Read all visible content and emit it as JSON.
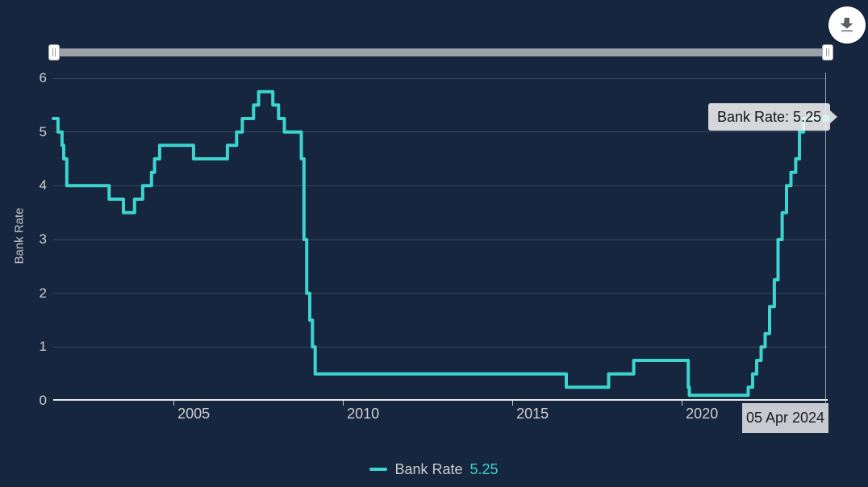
{
  "colors": {
    "background": "#16263E",
    "accent": "#3DD4CE",
    "grid": "#35455C",
    "axis_line": "#E8E8E8",
    "label": "#CCCCCC",
    "tooltip_bg": "#F7F7F7",
    "tooltip_text": "#141414"
  },
  "icons": {
    "download": "arrow-down-to-line"
  },
  "tooltip": {
    "label": "Bank Rate: 5.25",
    "date_label": "05 Apr 2024"
  },
  "legend": {
    "series_label": "Bank Rate",
    "series_value": "5.25"
  },
  "chart_data": {
    "type": "line",
    "step": "after",
    "title": "",
    "xlabel": "",
    "ylabel": "Bank Rate",
    "ylim": [
      0,
      6
    ],
    "yticks": [
      0,
      1,
      2,
      3,
      4,
      5,
      6
    ],
    "xlim": [
      2001.45,
      2024.28
    ],
    "xticks": [
      {
        "value": 2005,
        "label": "2005"
      },
      {
        "value": 2010,
        "label": "2010"
      },
      {
        "value": 2015,
        "label": "2015"
      },
      {
        "value": 2020,
        "label": "2020"
      }
    ],
    "grid": true,
    "legend_position": "bottom",
    "series": [
      {
        "name": "Bank Rate",
        "current_value": 5.25,
        "current_date": "05 Apr 2024",
        "points": [
          [
            2001.45,
            5.25
          ],
          [
            2001.59,
            5.0
          ],
          [
            2001.71,
            4.75
          ],
          [
            2001.76,
            4.5
          ],
          [
            2001.85,
            4.0
          ],
          [
            2003.1,
            3.75
          ],
          [
            2003.52,
            3.5
          ],
          [
            2003.85,
            3.75
          ],
          [
            2004.09,
            4.0
          ],
          [
            2004.35,
            4.25
          ],
          [
            2004.44,
            4.5
          ],
          [
            2004.59,
            4.75
          ],
          [
            2005.59,
            4.5
          ],
          [
            2006.59,
            4.75
          ],
          [
            2006.86,
            5.0
          ],
          [
            2007.03,
            5.25
          ],
          [
            2007.36,
            5.5
          ],
          [
            2007.51,
            5.75
          ],
          [
            2007.93,
            5.5
          ],
          [
            2008.1,
            5.25
          ],
          [
            2008.27,
            5.0
          ],
          [
            2008.77,
            4.5
          ],
          [
            2008.85,
            3.0
          ],
          [
            2008.93,
            2.0
          ],
          [
            2009.02,
            1.5
          ],
          [
            2009.1,
            1.0
          ],
          [
            2009.18,
            0.5
          ],
          [
            2016.59,
            0.25
          ],
          [
            2017.84,
            0.5
          ],
          [
            2018.58,
            0.75
          ],
          [
            2020.19,
            0.25
          ],
          [
            2020.22,
            0.1
          ],
          [
            2021.96,
            0.25
          ],
          [
            2022.09,
            0.5
          ],
          [
            2022.21,
            0.75
          ],
          [
            2022.34,
            1.0
          ],
          [
            2022.46,
            1.25
          ],
          [
            2022.59,
            1.75
          ],
          [
            2022.73,
            2.25
          ],
          [
            2022.84,
            3.0
          ],
          [
            2022.96,
            3.5
          ],
          [
            2023.09,
            4.0
          ],
          [
            2023.22,
            4.25
          ],
          [
            2023.36,
            4.5
          ],
          [
            2023.47,
            5.0
          ],
          [
            2023.59,
            5.25
          ],
          [
            2024.26,
            5.25
          ]
        ]
      }
    ]
  }
}
